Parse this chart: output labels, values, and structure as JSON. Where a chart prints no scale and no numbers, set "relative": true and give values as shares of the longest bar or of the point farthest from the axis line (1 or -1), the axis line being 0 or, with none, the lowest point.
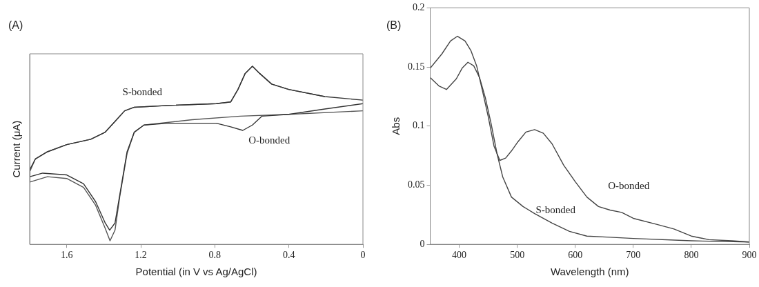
{
  "chart_data": [
    {
      "type": "line",
      "title": "(A)",
      "xlabel": "Potential (in V vs Ag/AgCl)",
      "ylabel": "Current (μA)",
      "relative": true,
      "xlim": [
        1.8,
        0
      ],
      "xticks": [
        1.6,
        1.2,
        0.8,
        0.4,
        0
      ],
      "series": [
        {
          "color": "#333333",
          "x": [
            0,
            0.206,
            0.401,
            0.493,
            0.558,
            0.597,
            0.636,
            0.675,
            0.714,
            0.792,
            1.053,
            1.235,
            1.287,
            1.339,
            1.392,
            1.47,
            1.6,
            1.704,
            1.769,
            1.799,
            1.799,
            1.73,
            1.6,
            1.509,
            1.444,
            1.392,
            1.368,
            1.339,
            1.313,
            1.274,
            1.235,
            1.183,
            1.053,
            0.792,
            0.714,
            0.649,
            0.597,
            0.545,
            0.401,
            0.206,
            0
          ],
          "values": [
            0.81,
            0.83,
            0.87,
            0.9,
            0.96,
            1,
            0.96,
            0.87,
            0.8,
            0.79,
            0.78,
            0.77,
            0.75,
            0.69,
            0.63,
            0.59,
            0.56,
            0.52,
            0.48,
            0.42,
            0.38,
            0.4,
            0.39,
            0.34,
            0.24,
            0.12,
            0.08,
            0.12,
            0.28,
            0.52,
            0.63,
            0.67,
            0.68,
            0.68,
            0.66,
            0.64,
            0.67,
            0.72,
            0.73,
            0.76,
            0.79
          ]
        },
        {
          "color": "#555555",
          "x": [
            0.206,
            0.401,
            0.493,
            0.558,
            0.597,
            0.636,
            0.675,
            0.714,
            0.792,
            1.053,
            1.235,
            1.287,
            1.339,
            1.392,
            1.47,
            1.6,
            1.704,
            1.769,
            1.799,
            1.799,
            1.704,
            1.6,
            1.509,
            1.444,
            1.392,
            1.366,
            1.339,
            1.313,
            1.274,
            1.235,
            1.183,
            0.922,
            0.662,
            0.401,
            0
          ],
          "values": [
            0.83,
            0.87,
            0.9,
            0.96,
            1,
            0.96,
            0.87,
            0.8,
            0.79,
            0.78,
            0.77,
            0.75,
            0.69,
            0.63,
            0.59,
            0.56,
            0.52,
            0.48,
            0.41,
            0.35,
            0.38,
            0.37,
            0.32,
            0.22,
            0.09,
            0.02,
            0.08,
            0.27,
            0.51,
            0.63,
            0.67,
            0.7,
            0.72,
            0.73,
            0.75
          ]
        }
      ],
      "annotations": [
        "S-bonded",
        "O-bonded"
      ]
    },
    {
      "type": "line",
      "title": "(B)",
      "xlabel": "Wavelength (nm)",
      "ylabel": "Abs",
      "xlim": [
        350,
        900
      ],
      "xticks": [
        400,
        500,
        600,
        700,
        800,
        900
      ],
      "ylim": [
        0,
        0.2
      ],
      "yticks": [
        0,
        0.05,
        0.1,
        0.15,
        0.2
      ],
      "series": [
        {
          "name": "O-bonded",
          "color": "#444444",
          "x": [
            350,
            370,
            385,
            397,
            410,
            420,
            430,
            440,
            450,
            460,
            470,
            480,
            490,
            500,
            515,
            530,
            545,
            560,
            580,
            600,
            620,
            640,
            660,
            680,
            700,
            740,
            770,
            800,
            830,
            870,
            900
          ],
          "values": [
            0.149,
            0.161,
            0.172,
            0.176,
            0.172,
            0.164,
            0.151,
            0.13,
            0.108,
            0.083,
            0.071,
            0.073,
            0.079,
            0.086,
            0.095,
            0.097,
            0.094,
            0.085,
            0.067,
            0.053,
            0.04,
            0.032,
            0.029,
            0.027,
            0.022,
            0.017,
            0.013,
            0.007,
            0.004,
            0.003,
            0.002
          ]
        },
        {
          "name": "S-bonded",
          "color": "#444444",
          "x": [
            350,
            365,
            378,
            395,
            405,
            415,
            425,
            435,
            445,
            455,
            465,
            475,
            490,
            510,
            530,
            560,
            590,
            620,
            660,
            700,
            800,
            900
          ],
          "values": [
            0.141,
            0.134,
            0.131,
            0.14,
            0.149,
            0.154,
            0.151,
            0.141,
            0.124,
            0.102,
            0.077,
            0.057,
            0.04,
            0.032,
            0.026,
            0.018,
            0.011,
            0.007,
            0.006,
            0.005,
            0.003,
            0.002
          ]
        }
      ],
      "legend": false
    }
  ]
}
